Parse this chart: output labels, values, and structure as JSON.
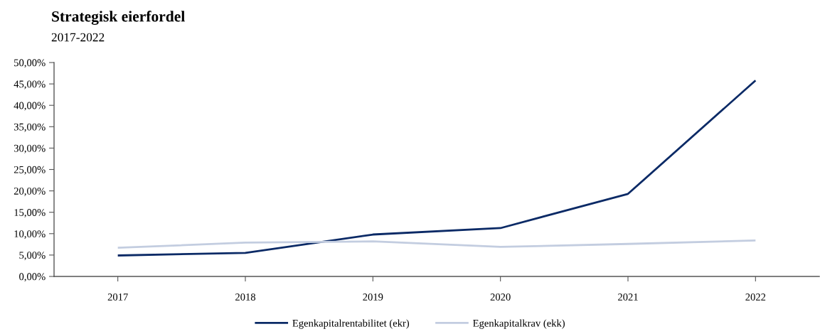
{
  "chart_data": {
    "type": "line",
    "title": "Strategisk eierfordel",
    "subtitle": "2017-2022",
    "categories": [
      "2017",
      "2018",
      "2019",
      "2020",
      "2021",
      "2022"
    ],
    "series": [
      {
        "name": "Egenkapitalrentabilitet (ekr)",
        "color": "#0b2a66",
        "values": [
          4.9,
          5.5,
          9.8,
          11.3,
          19.3,
          45.8
        ]
      },
      {
        "name": "Egenkapitalkrav (ekk)",
        "color": "#c3cde0",
        "values": [
          6.7,
          7.9,
          8.2,
          6.9,
          7.6,
          8.4
        ]
      }
    ],
    "ylim": [
      0,
      50
    ],
    "yticks": [
      {
        "value": 0,
        "label": "0,00%"
      },
      {
        "value": 5,
        "label": "5,00%"
      },
      {
        "value": 10,
        "label": "10,00%"
      },
      {
        "value": 15,
        "label": "15,00%"
      },
      {
        "value": 20,
        "label": "20,00%"
      },
      {
        "value": 25,
        "label": "25,00%"
      },
      {
        "value": 30,
        "label": "30,00%"
      },
      {
        "value": 35,
        "label": "35,00%"
      },
      {
        "value": 40,
        "label": "40,00%"
      },
      {
        "value": 45,
        "label": "45,00%"
      },
      {
        "value": 50,
        "label": "50,00%"
      }
    ],
    "grid": false,
    "legend": "bottom",
    "marker": "none",
    "line_style": "solid"
  }
}
